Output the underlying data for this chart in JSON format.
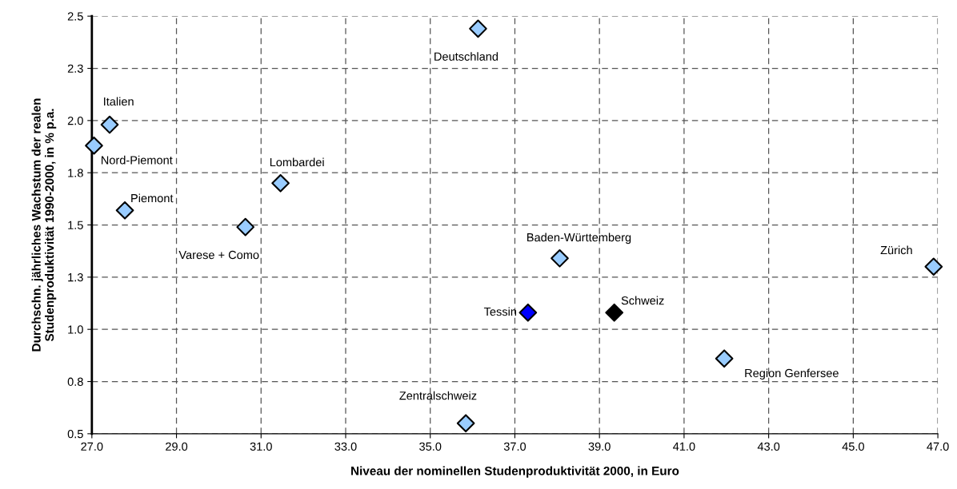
{
  "chart_data": {
    "type": "scatter",
    "xlabel": "Niveau der nominellen Studenproduktivität 2000, in Euro",
    "ylabel": "Durchschn. jährliches Wachstum der realen\nStudenproduktivität 1990-2000, in % p.a.",
    "x": [
      27.42,
      27.05,
      27.78,
      31.46,
      30.63,
      36.13,
      38.06,
      46.9,
      37.31,
      39.35,
      41.95,
      35.84
    ],
    "values": [
      1.98,
      1.88,
      1.57,
      1.7,
      1.49,
      2.44,
      1.34,
      1.3,
      1.08,
      1.08,
      0.86,
      0.55
    ],
    "colors": [
      "#99ccff",
      "#99ccff",
      "#99ccff",
      "#99ccff",
      "#99ccff",
      "#99ccff",
      "#99ccff",
      "#99ccff",
      "#0000ff",
      "#000000",
      "#99ccff",
      "#99ccff"
    ],
    "annotations": [
      {
        "text": "Italien",
        "x": 27.42,
        "y": 1.98
      },
      {
        "text": "Nord-Piemont",
        "x": 27.05,
        "y": 1.88
      },
      {
        "text": "Piemont",
        "x": 27.78,
        "y": 1.57
      },
      {
        "text": "Lombardei",
        "x": 31.46,
        "y": 1.7
      },
      {
        "text": "Varese + Como",
        "x": 30.63,
        "y": 1.49
      },
      {
        "text": "Deutschland",
        "x": 36.13,
        "y": 2.44
      },
      {
        "text": "Baden-Württemberg",
        "x": 38.06,
        "y": 1.34
      },
      {
        "text": "Zürich",
        "x": 46.9,
        "y": 1.3
      },
      {
        "text": "Tessin",
        "x": 37.31,
        "y": 1.08
      },
      {
        "text": "Schweiz",
        "x": 39.35,
        "y": 1.08
      },
      {
        "text": "Region Genfersee",
        "x": 41.95,
        "y": 0.86
      },
      {
        "text": "Zentralschweiz",
        "x": 35.84,
        "y": 0.55
      }
    ],
    "xlim": [
      27,
      47
    ],
    "xticks": [
      {
        "value": 27,
        "label": "27.0"
      },
      {
        "value": 29,
        "label": "29.0"
      },
      {
        "value": 31,
        "label": "31.0"
      },
      {
        "value": 33,
        "label": "33.0"
      },
      {
        "value": 35,
        "label": "35.0"
      },
      {
        "value": 37,
        "label": "37.0"
      },
      {
        "value": 39,
        "label": "39.0"
      },
      {
        "value": 41,
        "label": "41.0"
      },
      {
        "value": 43,
        "label": "43.0"
      },
      {
        "value": 45,
        "label": "45.0"
      },
      {
        "value": 47,
        "label": "47.0"
      }
    ],
    "ylim": [
      0.5,
      2.5
    ],
    "yticks": [
      {
        "value": 0.5,
        "label": "0.5"
      },
      {
        "value": 0.75,
        "label": "0.8"
      },
      {
        "value": 1.0,
        "label": "1.0"
      },
      {
        "value": 1.25,
        "label": "1.3"
      },
      {
        "value": 1.5,
        "label": "1.5"
      },
      {
        "value": 1.75,
        "label": "1.8"
      },
      {
        "value": 2.0,
        "label": "2.0"
      },
      {
        "value": 2.25,
        "label": "2.3"
      },
      {
        "value": 2.5,
        "label": "2.5"
      }
    ],
    "grid": true,
    "marker": "diamond"
  }
}
